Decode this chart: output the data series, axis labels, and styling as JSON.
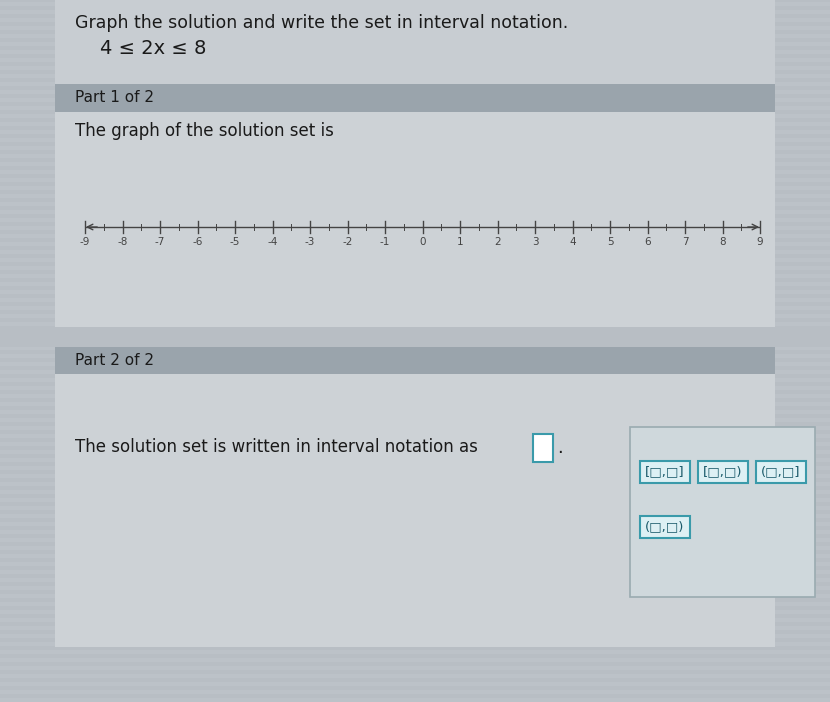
{
  "title": "Graph the solution and write the set in interval notation.",
  "inequality": "4 ≤ 2x ≤ 8",
  "part1_header": "Part 1 of 2",
  "part1_text": "The graph of the solution set is",
  "part2_header": "Part 2 of 2",
  "part2_text": "The solution set is written in interval notation as",
  "number_line_min": -9,
  "number_line_max": 9,
  "interval_options_row1": [
    "[□,□]",
    "[□,□)",
    "(□,□]"
  ],
  "interval_options_row2": [
    "(□,□)"
  ],
  "bg_color": "#b8bec4",
  "content_bg": "#c8cdd2",
  "header_bar_color": "#9aa4ac",
  "panel_light": "#cdd2d6",
  "axis_color": "#444444",
  "text_color": "#1a1a1a",
  "opt_border_color": "#3a9aaa",
  "opt_bg_color": "#ddf0f4",
  "opt_text_color": "#1a5a6a",
  "right_panel_bg": "#cfd8dc",
  "right_panel_border": "#9aabb0"
}
